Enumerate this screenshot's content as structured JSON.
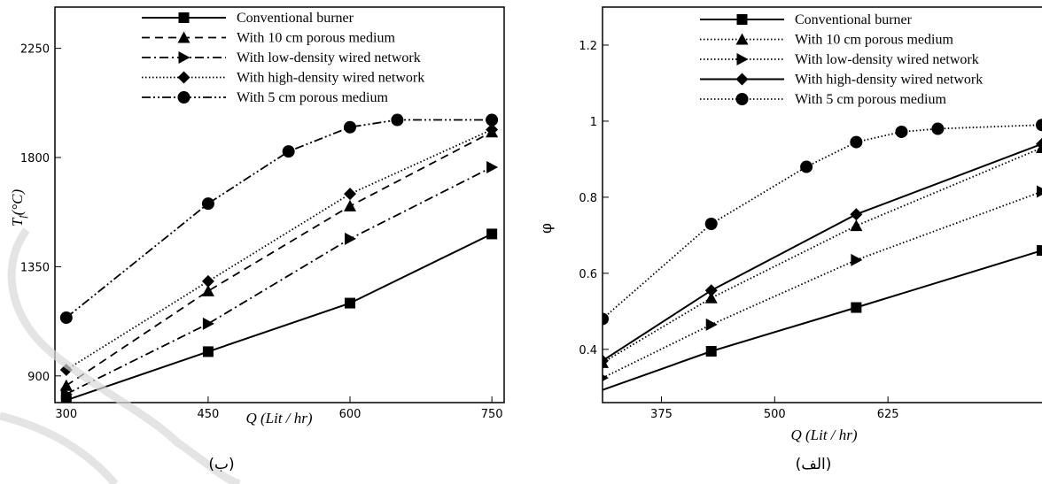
{
  "panel_captions": [
    "(ب)",
    "(الف)"
  ],
  "chart_data": [
    {
      "type": "line",
      "xlabel": "Q (Lit / hr)",
      "ylabel_main": "T",
      "ylabel_sub": "f",
      "ylabel_rest": "(°C)",
      "xlim": [
        288,
        763
      ],
      "ylim": [
        790,
        2420
      ],
      "x_ticks": [
        300,
        450,
        600,
        750
      ],
      "y_ticks": [
        900,
        1350,
        1800,
        2250
      ],
      "legend_position": "top-right",
      "series": [
        {
          "name": "Conventional burner",
          "style": "solid",
          "marker": "square",
          "x": [
            300,
            450,
            600,
            750
          ],
          "y": [
            800,
            1000,
            1200,
            1485
          ]
        },
        {
          "name": "With 10 cm porous medium",
          "style": "dash",
          "marker": "triangle",
          "x": [
            300,
            450,
            600,
            750
          ],
          "y": [
            860,
            1250,
            1600,
            1905
          ]
        },
        {
          "name": "With low-density wired network",
          "style": "dashdot",
          "marker": "triangle-right",
          "x": [
            300,
            450,
            600,
            750
          ],
          "y": [
            825,
            1115,
            1465,
            1760
          ]
        },
        {
          "name": "With high-density wired network",
          "style": "dotted",
          "marker": "diamond",
          "x": [
            300,
            450,
            600,
            750
          ],
          "y": [
            925,
            1290,
            1650,
            1915
          ]
        },
        {
          "name": "With 5 cm porous medium",
          "style": "dashdotdot",
          "marker": "circle",
          "x": [
            300,
            450,
            535,
            600,
            650,
            750
          ],
          "y": [
            1140,
            1610,
            1825,
            1925,
            1955,
            1955
          ]
        }
      ]
    },
    {
      "type": "line",
      "xlabel": "Q (Lit / hr)",
      "ylabel": "φ",
      "xlim": [
        310,
        795
      ],
      "ylim": [
        0.26,
        1.3
      ],
      "x_ticks": [
        375,
        500,
        625
      ],
      "y_ticks": [
        0.4,
        0.6,
        0.8,
        1,
        1.2
      ],
      "y_tick_labels": [
        "0.4",
        "0.6",
        "0.8",
        "1",
        "1.2"
      ],
      "legend_position": "top-right",
      "series": [
        {
          "name": "Conventional burner",
          "style": "solid",
          "marker": "square",
          "x": [
            300,
            430,
            590,
            795
          ],
          "y": [
            0.285,
            0.395,
            0.51,
            0.66
          ]
        },
        {
          "name": "With 10 cm porous medium",
          "style": "dotted",
          "marker": "triangle",
          "x": [
            310,
            430,
            590,
            795
          ],
          "y": [
            0.365,
            0.535,
            0.725,
            0.93
          ]
        },
        {
          "name": "With low-density wired network",
          "style": "dotted",
          "marker": "triangle-right",
          "x": [
            310,
            430,
            590,
            795
          ],
          "y": [
            0.325,
            0.465,
            0.635,
            0.815
          ]
        },
        {
          "name": "With high-density wired network",
          "style": "solid",
          "marker": "diamond",
          "x": [
            310,
            430,
            590,
            795
          ],
          "y": [
            0.37,
            0.555,
            0.755,
            0.94
          ]
        },
        {
          "name": "With 5 cm porous medium",
          "style": "dotted",
          "marker": "circle",
          "x": [
            310,
            430,
            535,
            590,
            640,
            680,
            795
          ],
          "y": [
            0.48,
            0.73,
            0.88,
            0.945,
            0.972,
            0.98,
            0.99
          ]
        }
      ]
    }
  ]
}
